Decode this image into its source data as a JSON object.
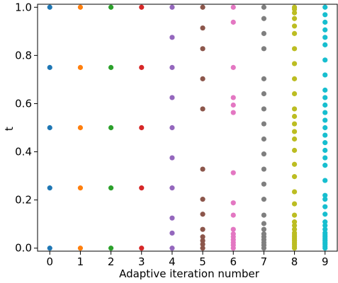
{
  "chart_data": {
    "type": "scatter",
    "title": "",
    "xlabel": "Adaptive iteration number",
    "ylabel": "t",
    "xlim": [
      -0.4,
      9.4
    ],
    "ylim": [
      -0.0125,
      1.0125
    ],
    "xticks": [
      "0",
      "1",
      "2",
      "3",
      "4",
      "5",
      "6",
      "7",
      "8",
      "9"
    ],
    "yticks": [
      "0.0",
      "0.2",
      "0.4",
      "0.6",
      "0.8",
      "1.0"
    ],
    "grid": false,
    "legend": false,
    "series": [
      {
        "x": 0,
        "color": "#1f77b4",
        "values": [
          0,
          0.25,
          0.5,
          0.75,
          1
        ]
      },
      {
        "x": 1,
        "color": "#ff7f0e",
        "values": [
          0,
          0.25,
          0.5,
          0.75,
          1
        ]
      },
      {
        "x": 2,
        "color": "#2ca02c",
        "values": [
          0,
          0.25,
          0.5,
          0.75,
          1
        ]
      },
      {
        "x": 3,
        "color": "#d62728",
        "values": [
          0,
          0.25,
          0.5,
          0.75,
          1
        ]
      },
      {
        "x": 4,
        "color": "#9467bd",
        "values": [
          0,
          0.0625,
          0.125,
          0.25,
          0.375,
          0.5,
          0.625,
          0.75,
          0.875,
          1
        ]
      },
      {
        "x": 5,
        "color": "#8c564b",
        "values": [
          0,
          0.016,
          0.031,
          0.047,
          0.078,
          0.141,
          0.203,
          0.328,
          0.578,
          0.703,
          0.828,
          0.914,
          1
        ]
      },
      {
        "x": 6,
        "color": "#e377c2",
        "values": [
          0,
          0.012,
          0.023,
          0.035,
          0.047,
          0.059,
          0.078,
          0.137,
          0.188,
          0.313,
          0.563,
          0.594,
          0.625,
          0.75,
          0.938,
          1
        ]
      },
      {
        "x": 7,
        "color": "#7f7f7f",
        "values": [
          0,
          0.012,
          0.023,
          0.035,
          0.047,
          0.059,
          0.078,
          0.102,
          0.137,
          0.203,
          0.266,
          0.328,
          0.391,
          0.453,
          0.516,
          0.578,
          0.641,
          0.703,
          0.828,
          0.891,
          0.953,
          1
        ]
      },
      {
        "x": 8,
        "color": "#bcbd22",
        "values": [
          0,
          0.008,
          0.016,
          0.023,
          0.031,
          0.039,
          0.047,
          0.055,
          0.063,
          0.078,
          0.094,
          0.109,
          0.137,
          0.184,
          0.234,
          0.297,
          0.348,
          0.406,
          0.453,
          0.484,
          0.516,
          0.547,
          0.578,
          0.641,
          0.703,
          0.766,
          0.828,
          0.891,
          0.922,
          0.953,
          0.977,
          0.992,
          1
        ]
      },
      {
        "x": 9,
        "color": "#17becf",
        "values": [
          0,
          0.008,
          0.016,
          0.023,
          0.031,
          0.039,
          0.047,
          0.055,
          0.063,
          0.078,
          0.094,
          0.109,
          0.141,
          0.172,
          0.203,
          0.219,
          0.281,
          0.344,
          0.375,
          0.406,
          0.438,
          0.469,
          0.5,
          0.531,
          0.563,
          0.594,
          0.625,
          0.656,
          0.719,
          0.781,
          0.844,
          0.875,
          0.906,
          0.938,
          0.969,
          1
        ]
      }
    ]
  }
}
